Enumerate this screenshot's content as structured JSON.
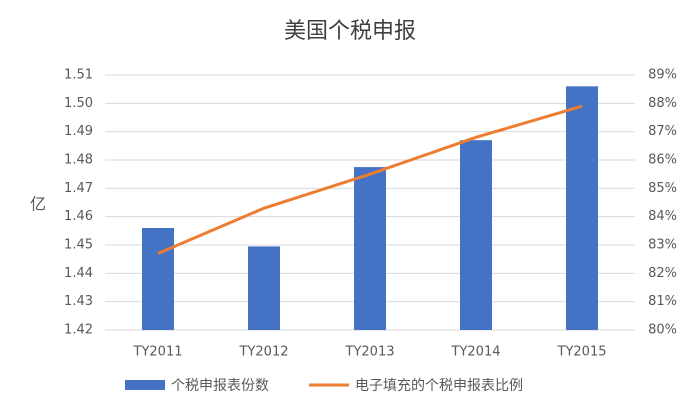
{
  "chart_data": {
    "type": "combo",
    "title": "美国个税申报",
    "y_label": "亿",
    "categories": [
      "TY2011",
      "TY2012",
      "TY2013",
      "TY2014",
      "TY2015"
    ],
    "series": [
      {
        "name": "个税申报表份数",
        "type": "bar",
        "color": "#4472c4",
        "values": [
          1.456,
          1.4495,
          1.4775,
          1.487,
          1.506
        ]
      },
      {
        "name": "电子填充的个税申报表比例",
        "type": "line",
        "axis": "y2",
        "color": "#ed7d31",
        "values": [
          82.7,
          84.3,
          85.5,
          86.8,
          87.9
        ]
      }
    ],
    "ylim": [
      1.42,
      1.51
    ],
    "yticks": [
      1.42,
      1.43,
      1.44,
      1.45,
      1.46,
      1.47,
      1.48,
      1.49,
      {
        "value": 1.5,
        "label": "1.50"
      },
      1.51
    ],
    "y2lim": [
      80,
      89
    ],
    "y2ticks": [
      {
        "value": 80,
        "label": "80%"
      },
      {
        "value": 81,
        "label": "81%"
      },
      {
        "value": 82,
        "label": "82%"
      },
      {
        "value": 83,
        "label": "83%"
      },
      {
        "value": 84,
        "label": "84%"
      },
      {
        "value": 85,
        "label": "85%"
      },
      {
        "value": 86,
        "label": "86%"
      },
      {
        "value": 87,
        "label": "87%"
      },
      {
        "value": 88,
        "label": "88%"
      },
      {
        "value": 89,
        "label": "89%"
      }
    ],
    "grid": true
  }
}
